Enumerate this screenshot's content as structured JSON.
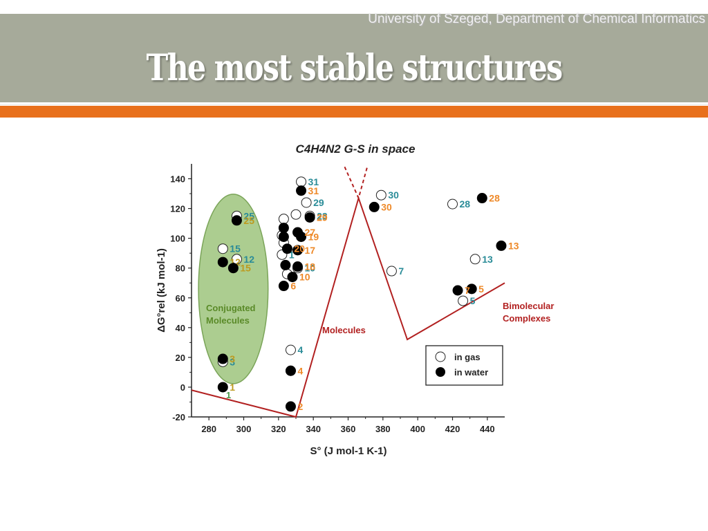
{
  "header": {
    "institution": "University of Szeged, Department of Chemical Informatics",
    "title": "The most stable structures"
  },
  "chart_data": {
    "type": "scatter",
    "title": "C4H4N2 G-S in space",
    "xlabel": "S° (J mol-1 K-1)",
    "ylabel": "ΔG°rel (kJ mol-1)",
    "xlim": [
      270,
      450
    ],
    "ylim": [
      -20,
      150
    ],
    "x_ticks": [
      280,
      300,
      320,
      340,
      360,
      380,
      400,
      420,
      440
    ],
    "y_ticks": [
      -20,
      0,
      20,
      40,
      60,
      80,
      100,
      120,
      140
    ],
    "grid": false,
    "legend": {
      "placement": "bottom-right",
      "entries": [
        "in gas",
        "in water"
      ]
    },
    "colors": {
      "gas_label": "#2a8c98",
      "water_label": "#ee8a2a",
      "conjugated_label": "#bd9a1f",
      "region_fill": "#9ec47c",
      "boundary": "#b22020",
      "annotation": "#b22020",
      "region_text": "#5a8a28"
    },
    "series": [
      {
        "name": "in gas",
        "points": [
          {
            "x": 288,
            "y": 17,
            "label": "3"
          },
          {
            "x": 288,
            "y": 93,
            "label": "15"
          },
          {
            "x": 296,
            "y": 115,
            "label": "25"
          },
          {
            "x": 296,
            "y": 86,
            "label": "12"
          },
          {
            "x": 327,
            "y": 25,
            "label": "4"
          },
          {
            "x": 327,
            "y": 11,
            "label": ""
          },
          {
            "x": 331,
            "y": 80,
            "label": "10"
          },
          {
            "x": 322,
            "y": 89,
            "label": "1"
          },
          {
            "x": 323,
            "y": 113,
            "label": ""
          },
          {
            "x": 322,
            "y": 102,
            "label": ""
          },
          {
            "x": 323,
            "y": 97,
            "label": ""
          },
          {
            "x": 330,
            "y": 116,
            "label": ""
          },
          {
            "x": 325,
            "y": 76,
            "label": ""
          },
          {
            "x": 333,
            "y": 138,
            "label": "31"
          },
          {
            "x": 336,
            "y": 124,
            "label": "29"
          },
          {
            "x": 338,
            "y": 115,
            "label": "23"
          },
          {
            "x": 379,
            "y": 129,
            "label": "30"
          },
          {
            "x": 385,
            "y": 78,
            "label": "7"
          },
          {
            "x": 420,
            "y": 123,
            "label": "28"
          },
          {
            "x": 433,
            "y": 86,
            "label": "13"
          },
          {
            "x": 426,
            "y": 58,
            "label": "5"
          }
        ]
      },
      {
        "name": "in water",
        "points": [
          {
            "x": 288,
            "y": 0,
            "label": "1"
          },
          {
            "x": 288,
            "y": 19,
            "label": "3"
          },
          {
            "x": 288,
            "y": 84,
            "label": "12"
          },
          {
            "x": 296,
            "y": 112,
            "label": "25"
          },
          {
            "x": 294,
            "y": 80,
            "label": "15"
          },
          {
            "x": 327,
            "y": -13,
            "label": "2"
          },
          {
            "x": 327,
            "y": 11,
            "label": "4"
          },
          {
            "x": 323,
            "y": 68,
            "label": "6"
          },
          {
            "x": 328,
            "y": 74,
            "label": "10"
          },
          {
            "x": 331,
            "y": 81,
            "label": "18"
          },
          {
            "x": 331,
            "y": 92,
            "label": "17"
          },
          {
            "x": 324,
            "y": 82,
            "label": ""
          },
          {
            "x": 325,
            "y": 93,
            "label": "20"
          },
          {
            "x": 323,
            "y": 101,
            "label": ""
          },
          {
            "x": 333,
            "y": 101,
            "label": "19"
          },
          {
            "x": 331,
            "y": 104,
            "label": "27"
          },
          {
            "x": 323,
            "y": 107,
            "label": ""
          },
          {
            "x": 338,
            "y": 114,
            "label": "29"
          },
          {
            "x": 333,
            "y": 132,
            "label": "31"
          },
          {
            "x": 375,
            "y": 121,
            "label": "30"
          },
          {
            "x": 437,
            "y": 127,
            "label": "28"
          },
          {
            "x": 448,
            "y": 95,
            "label": "13"
          },
          {
            "x": 431,
            "y": 66,
            "label": "5"
          },
          {
            "x": 423,
            "y": 65,
            "label": "7"
          }
        ]
      }
    ],
    "annotations": [
      {
        "text": "Conjugated",
        "role": "region"
      },
      {
        "text": "Molecules",
        "role": "region"
      },
      {
        "text": "Molecules",
        "role": "boundary"
      },
      {
        "text": "Bimolecular",
        "role": "boundary2"
      },
      {
        "text": "Complexes",
        "role": "boundary2"
      },
      {
        "text": "1",
        "role": "gas-extra"
      }
    ],
    "boundary_lines": [
      {
        "style": "solid",
        "points": [
          [
            270,
            -2
          ],
          [
            330,
            -20
          ],
          [
            366,
            127
          ],
          [
            394,
            32
          ],
          [
            450,
            70
          ]
        ]
      },
      {
        "style": "dashed",
        "points": [
          [
            358,
            148
          ],
          [
            366,
            127
          ],
          [
            371,
            148
          ]
        ]
      }
    ],
    "region": {
      "cx": 294,
      "cy": 66,
      "rx": 20,
      "ry": 137
    }
  }
}
